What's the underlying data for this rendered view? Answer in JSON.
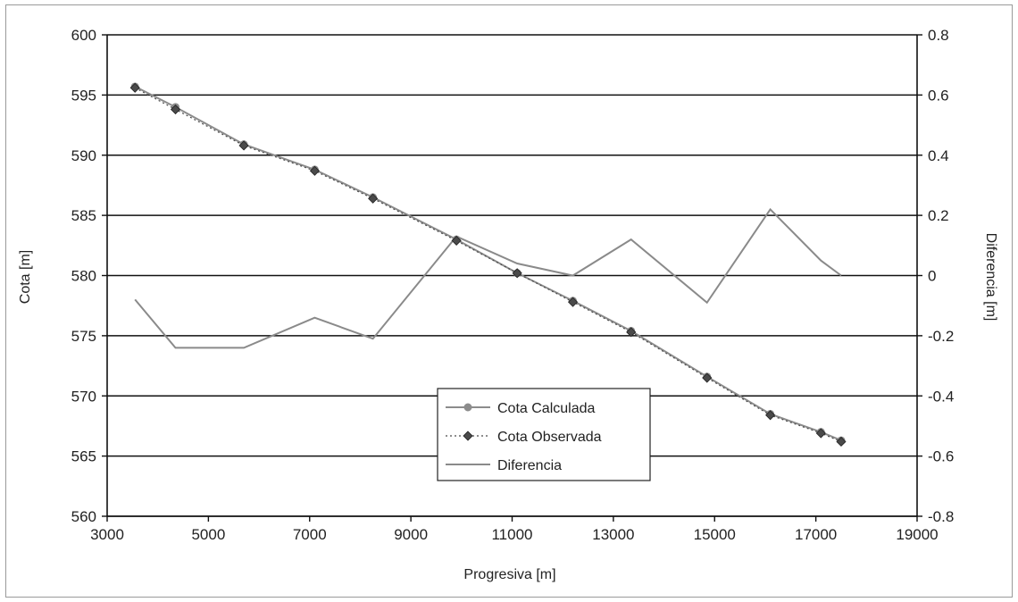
{
  "chart_data": {
    "type": "line",
    "xlabel": "Progresiva [m]",
    "ylabel": "Cota [m]",
    "y2label": "Diferencia [m]",
    "xlim": [
      3000,
      19000
    ],
    "xticks": [
      3000,
      5000,
      7000,
      9000,
      11000,
      13000,
      15000,
      17000,
      19000
    ],
    "ylim": [
      560,
      600
    ],
    "yticks": [
      560,
      565,
      570,
      575,
      580,
      585,
      590,
      595,
      600
    ],
    "y2lim": [
      -0.8,
      0.8
    ],
    "y2ticks": [
      -0.8,
      -0.6,
      -0.4,
      -0.2,
      0,
      0.2,
      0.4,
      0.6,
      0.8
    ],
    "grid": "horizontal",
    "legend": "bottom-center",
    "series": [
      {
        "name": "Cota Calculada",
        "axis": "left",
        "color": "#8c8c8c",
        "marker": "circle",
        "x": [
          3550,
          4350,
          5700,
          7100,
          8250,
          9900,
          11100,
          12200,
          13350,
          14850,
          16100,
          17100,
          17500
        ],
        "y": [
          595.7,
          594.0,
          590.9,
          588.8,
          586.5,
          583.0,
          580.2,
          577.9,
          575.4,
          571.6,
          568.5,
          567.0,
          566.3
        ]
      },
      {
        "name": "Cota Observada",
        "axis": "left",
        "color": "#4a4a4a",
        "marker": "diamond",
        "x": [
          3550,
          4350,
          5700,
          7100,
          8250,
          9900,
          11100,
          12200,
          13350,
          14850,
          16100,
          17100,
          17500
        ],
        "y": [
          595.6,
          593.8,
          590.8,
          588.7,
          586.4,
          582.9,
          580.2,
          577.8,
          575.3,
          571.5,
          568.4,
          566.9,
          566.2
        ]
      },
      {
        "name": "Diferencia",
        "axis": "right",
        "color": "#8a8a8a",
        "marker": "none",
        "x": [
          3550,
          4350,
          5700,
          7100,
          8250,
          9900,
          11100,
          12200,
          13350,
          14850,
          16100,
          17100,
          17500
        ],
        "y": [
          -0.08,
          -0.24,
          -0.24,
          -0.14,
          -0.21,
          0.13,
          0.04,
          0.0,
          0.12,
          -0.09,
          0.22,
          0.05,
          0.0
        ]
      }
    ]
  }
}
